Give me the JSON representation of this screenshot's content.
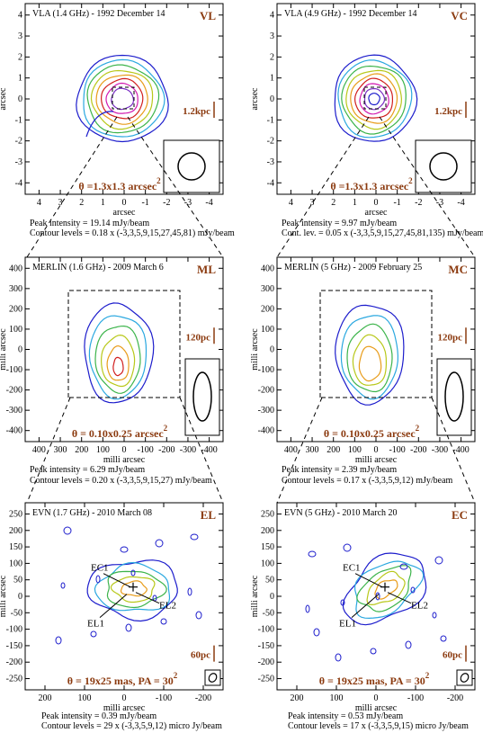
{
  "panels": [
    {
      "code": "VL",
      "title": "VLA (1.4 GHz) - 1992 December 14",
      "xlabel": "arcsec",
      "ylabel": "arcsec",
      "xticks": [
        "4",
        "3",
        "2",
        "1",
        "0",
        "-1",
        "-2",
        "-3",
        "-4"
      ],
      "yticks": [
        "4",
        "3",
        "2",
        "1",
        "0",
        "-1",
        "-2",
        "-3",
        "-4"
      ],
      "scale": "1.2kpc",
      "beam_text": "θ =1.3x1.3 arcsec",
      "beam_sup": "2",
      "peak": "Peak intensity = 19.14 mJy/beam",
      "contours": "Contour levels = 0.18 x (-3,3,5,9,15,27,45,81) mJy/beam"
    },
    {
      "code": "VC",
      "title": "VLA (4.9 GHz) - 1992 December 14",
      "xlabel": "arcsec",
      "ylabel": "arcsec",
      "xticks": [
        "4",
        "3",
        "2",
        "1",
        "0",
        "-1",
        "-2",
        "-3",
        "-4"
      ],
      "yticks": [
        "4",
        "3",
        "2",
        "1",
        "0",
        "-1",
        "-2",
        "-3",
        "-4"
      ],
      "scale": "1.2kpc",
      "beam_text": "θ =1.3x1.3 arcsec",
      "beam_sup": "2",
      "peak": "Peak intensity = 9.97 mJy/beam",
      "contours": "Cont. lev. = 0.05 x (-3,3,5,9,15,27,45,81,135) mJy/beam"
    },
    {
      "code": "ML",
      "title": "MERLIN (1.6 GHz) - 2009 March 6",
      "xlabel": "milli arcsec",
      "ylabel": "milli arcsec",
      "xticks": [
        "400",
        "300",
        "200",
        "100",
        "0",
        "-100",
        "-200",
        "-300",
        "-400"
      ],
      "yticks": [
        "400",
        "300",
        "200",
        "100",
        "0",
        "-100",
        "-200",
        "-300",
        "-400"
      ],
      "scale": "120pc",
      "beam_text": "θ = 0.10x0.25 arcsec",
      "beam_sup": "2",
      "peak": "Peak intensity = 6.29 mJy/beam",
      "contours": "Contour levels = 0.20 x (-3,3,5,9,15,27) mJy/beam"
    },
    {
      "code": "MC",
      "title": "MERLIN (5 GHz) - 2009 February 25",
      "xlabel": "milli arcsec",
      "ylabel": "milli arcsec",
      "xticks": [
        "400",
        "300",
        "200",
        "100",
        "0",
        "-100",
        "-200",
        "-300",
        "-400"
      ],
      "yticks": [
        "400",
        "300",
        "200",
        "100",
        "0",
        "-100",
        "-200",
        "-300",
        "-400"
      ],
      "scale": "120pc",
      "beam_text": "θ = 0.10x0.25 arcsec",
      "beam_sup": "2",
      "peak": "Peak intensity = 2.39 mJy/beam",
      "contours": "Contour levels = 0.17 x (-3,3,5,9,12) mJy/beam"
    },
    {
      "code": "EL",
      "title": "EVN (1.7 GHz) - 2010 March 08",
      "xlabel": "milli arcsec",
      "ylabel": "milli arcsec",
      "xticks": [
        "200",
        "100",
        "0",
        "-100",
        "-200"
      ],
      "yticks": [
        "250",
        "200",
        "150",
        "100",
        "50",
        "0",
        "-50",
        "-100",
        "-150",
        "-200",
        "-250"
      ],
      "scale": "60pc",
      "beam_text": "θ = 19x25 mas, PA = 30",
      "beam_sup": "2",
      "peak": "Peak intensity = 0.39 mJy/beam",
      "contours": "Contour levels = 29 x (-3,3,5,9,12) micro Jy/beam",
      "labels": [
        "EC1",
        "EL2",
        "EL1"
      ]
    },
    {
      "code": "EC",
      "title": "EVN (5 GHz) - 2010 March 20",
      "xlabel": "milli arcsec",
      "ylabel": "milli arcsec",
      "xticks": [
        "200",
        "100",
        "0",
        "-100",
        "-200"
      ],
      "yticks": [
        "250",
        "200",
        "150",
        "100",
        "50",
        "0",
        "-50",
        "-100",
        "-150",
        "-200",
        "-250"
      ],
      "scale": "60pc",
      "beam_text": "θ = 19x25 mas, PA = 30",
      "beam_sup": "2",
      "peak": "Peak intensity = 0.53 mJy/beam",
      "contours": "Contour levels = 17 x (-3,3,5,9,15) micro Jy/beam",
      "labels": [
        "EC1",
        "EL2",
        "EL1"
      ]
    }
  ],
  "colors": {
    "accent_text": "#8b3a0f",
    "contour_palette": [
      "#1d1dcc",
      "#2ba8e0",
      "#3cb44b",
      "#b8c81a",
      "#e89c1a",
      "#d11f1f",
      "#d21bb0",
      "#7a2fc4"
    ]
  }
}
